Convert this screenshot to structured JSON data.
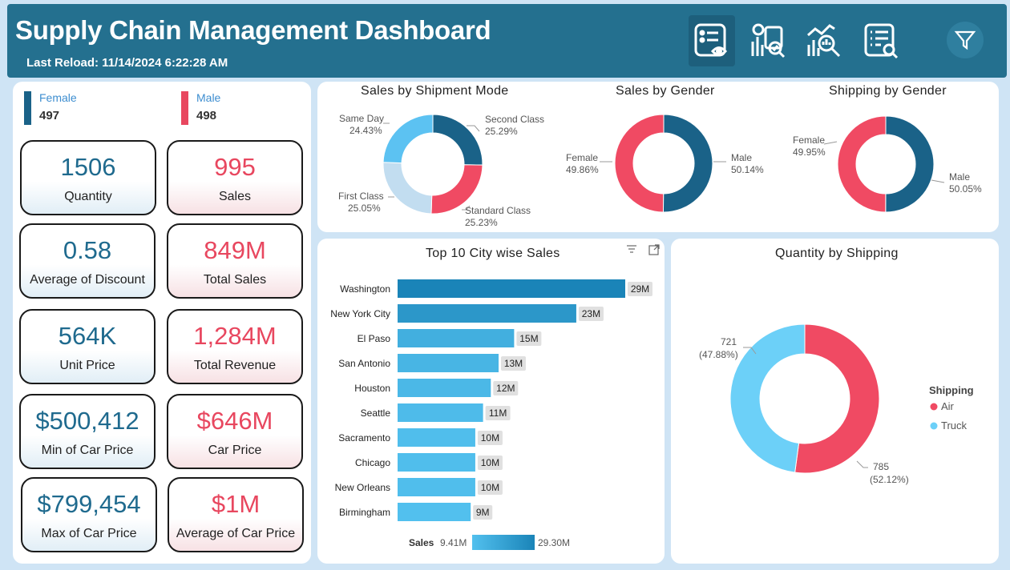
{
  "header": {
    "title": "Supply Chain Management Dashboard",
    "last_reload": "Last Reload: 11/14/2024 6:22:28 AM",
    "nav": [
      "overview-icon",
      "report-check-icon",
      "analysis-search-icon",
      "document-search-icon"
    ],
    "filter_icon": "filter-icon"
  },
  "gender_legend": [
    {
      "label": "Female",
      "value": "497",
      "color": "#1a6288",
      "label_color": "#3e8ed0"
    },
    {
      "label": "Male",
      "value": "498",
      "color": "#e8475f",
      "label_color": "#3e8ed0"
    }
  ],
  "kpis": [
    {
      "value": "1506",
      "label": "Quantity",
      "style": "blue"
    },
    {
      "value": "995",
      "label": "Sales",
      "style": "red"
    },
    {
      "value": "0.58",
      "label": "Average of Discount",
      "style": "blue"
    },
    {
      "value": "849M",
      "label": "Total Sales",
      "style": "red"
    },
    {
      "value": "564K",
      "label": "Unit Price",
      "style": "blue"
    },
    {
      "value": "1,284M",
      "label": "Total Revenue",
      "style": "red"
    },
    {
      "value": "$500,412",
      "label": "Min of Car Price",
      "style": "blue"
    },
    {
      "value": "$646M",
      "label": "Car Price",
      "style": "red"
    },
    {
      "value": "$799,454",
      "label": "Max of Car Price",
      "style": "blue"
    },
    {
      "value": "$1M",
      "label": "Average of Car Price",
      "style": "red"
    }
  ],
  "chart_data": [
    {
      "type": "pie",
      "title": "Sales by Shipment Mode",
      "donut": true,
      "slices": [
        {
          "label": "Second Class",
          "value": 25.29,
          "value_label": "25.29%",
          "color": "#1a6288"
        },
        {
          "label": "Standard Class",
          "value": 25.23,
          "value_label": "25.23%",
          "color": "#f04a63"
        },
        {
          "label": "First Class",
          "value": 25.05,
          "value_label": "25.05%",
          "color": "#c2ddf0"
        },
        {
          "label": "Same Day",
          "value": 24.43,
          "value_label": "24.43%",
          "color": "#5cc2f2"
        }
      ]
    },
    {
      "type": "pie",
      "title": "Sales by Gender",
      "donut": true,
      "slices": [
        {
          "label": "Male",
          "value": 50.14,
          "value_label": "50.14%",
          "color": "#1a6288"
        },
        {
          "label": "Female",
          "value": 49.86,
          "value_label": "49.86%",
          "color": "#f04a63"
        }
      ]
    },
    {
      "type": "pie",
      "title": "Shipping by Gender",
      "donut": true,
      "slices": [
        {
          "label": "Male",
          "value": 50.05,
          "value_label": "50.05%",
          "color": "#1a6288"
        },
        {
          "label": "Female",
          "value": 49.95,
          "value_label": "49.95%",
          "color": "#f04a63"
        }
      ]
    },
    {
      "type": "bar",
      "orientation": "horizontal",
      "title": "Top 10 City wise Sales",
      "categories": [
        "Washington",
        "New York City",
        "El Paso",
        "San Antonio",
        "Houston",
        "Seattle",
        "Sacramento",
        "Chicago",
        "New Orleans",
        "Birmingham"
      ],
      "values": [
        29.3,
        23,
        15,
        13,
        12,
        11,
        10,
        10,
        10,
        9.41
      ],
      "value_labels": [
        "29M",
        "23M",
        "15M",
        "13M",
        "12M",
        "11M",
        "10M",
        "10M",
        "10M",
        "9M"
      ],
      "color_scale": {
        "title": "Sales",
        "min_label": "9.41M",
        "max_label": "29.30M",
        "min_color": "#52c0ee",
        "max_color": "#1a84b8"
      }
    },
    {
      "type": "pie",
      "title": "Quantity by Shipping",
      "donut": true,
      "legend_title": "Shipping",
      "legend_position": "right",
      "slices": [
        {
          "label": "Air",
          "value": 785,
          "value_label": "785",
          "pct_label": "(52.12%)",
          "color": "#f04a63"
        },
        {
          "label": "Truck",
          "value": 721,
          "value_label": "721",
          "pct_label": "(47.88%)",
          "color": "#6cd0f8"
        }
      ]
    }
  ]
}
